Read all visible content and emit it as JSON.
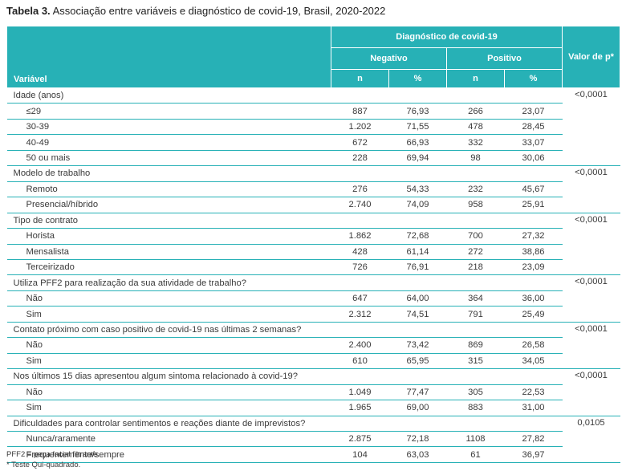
{
  "title": {
    "label": "Tabela 3.",
    "text": " Associação entre variáveis e diagnóstico de covid-19, Brasil, 2020-2022"
  },
  "header": {
    "variable": "Variável",
    "group": "Diagnóstico de covid-19",
    "negative": "Negativo",
    "positive": "Positivo",
    "pvalue": "Valor de p*",
    "n": "n",
    "pct": "%"
  },
  "groups": [
    {
      "label": "Idade (anos)",
      "p": "<0,0001",
      "rows": [
        {
          "label": "≤29",
          "neg_n": "887",
          "neg_pct": "76,93",
          "pos_n": "266",
          "pos_pct": "23,07"
        },
        {
          "label": "30-39",
          "neg_n": "1.202",
          "neg_pct": "71,55",
          "pos_n": "478",
          "pos_pct": "28,45"
        },
        {
          "label": "40-49",
          "neg_n": "672",
          "neg_pct": "66,93",
          "pos_n": "332",
          "pos_pct": "33,07"
        },
        {
          "label": "50 ou mais",
          "neg_n": "228",
          "neg_pct": "69,94",
          "pos_n": "98",
          "pos_pct": "30,06"
        }
      ]
    },
    {
      "label": "Modelo de trabalho",
      "p": "<0,0001",
      "rows": [
        {
          "label": "Remoto",
          "neg_n": "276",
          "neg_pct": "54,33",
          "pos_n": "232",
          "pos_pct": "45,67"
        },
        {
          "label": "Presencial/híbrido",
          "neg_n": "2.740",
          "neg_pct": "74,09",
          "pos_n": "958",
          "pos_pct": "25,91"
        }
      ]
    },
    {
      "label": "Tipo de contrato",
      "p": "<0,0001",
      "rows": [
        {
          "label": "Horista",
          "neg_n": "1.862",
          "neg_pct": "72,68",
          "pos_n": "700",
          "pos_pct": "27,32"
        },
        {
          "label": "Mensalista",
          "neg_n": "428",
          "neg_pct": "61,14",
          "pos_n": "272",
          "pos_pct": "38,86"
        },
        {
          "label": "Terceirizado",
          "neg_n": "726",
          "neg_pct": "76,91",
          "pos_n": "218",
          "pos_pct": "23,09"
        }
      ]
    },
    {
      "label": "Utiliza PFF2 para realização da sua atividade de trabalho?",
      "p": "<0,0001",
      "rows": [
        {
          "label": "Não",
          "neg_n": "647",
          "neg_pct": "64,00",
          "pos_n": "364",
          "pos_pct": "36,00"
        },
        {
          "label": "Sim",
          "neg_n": "2.312",
          "neg_pct": "74,51",
          "pos_n": "791",
          "pos_pct": "25,49"
        }
      ]
    },
    {
      "label": "Contato próximo com caso positivo de covid-19 nas últimas 2 semanas?",
      "p": "<0,0001",
      "rows": [
        {
          "label": "Não",
          "neg_n": "2.400",
          "neg_pct": "73,42",
          "pos_n": "869",
          "pos_pct": "26,58"
        },
        {
          "label": "Sim",
          "neg_n": "610",
          "neg_pct": "65,95",
          "pos_n": "315",
          "pos_pct": "34,05"
        }
      ]
    },
    {
      "label": "Nos últimos 15 dias apresentou algum sintoma relacionado à covid-19?",
      "p": "<0,0001",
      "rows": [
        {
          "label": "Não",
          "neg_n": "1.049",
          "neg_pct": "77,47",
          "pos_n": "305",
          "pos_pct": "22,53"
        },
        {
          "label": "Sim",
          "neg_n": "1.965",
          "neg_pct": "69,00",
          "pos_n": "883",
          "pos_pct": "31,00"
        }
      ]
    },
    {
      "label": "Dificuldades para controlar sentimentos e reações diante de imprevistos?",
      "p": "0,0105",
      "rows": [
        {
          "label": "Nunca/raramente",
          "neg_n": "2.875",
          "neg_pct": "72,18",
          "pos_n": "1108",
          "pos_pct": "27,82"
        },
        {
          "label": "Frequentemente/sempre",
          "neg_n": "104",
          "neg_pct": "63,03",
          "pos_n": "61",
          "pos_pct": "36,97"
        }
      ]
    }
  ],
  "footnotes": [
    "PFF2 = peça facial filtrante.",
    "* Teste Qui-quadrado."
  ],
  "colors": {
    "header_bg": "#27b1b6",
    "rule": "#27b1b6"
  }
}
